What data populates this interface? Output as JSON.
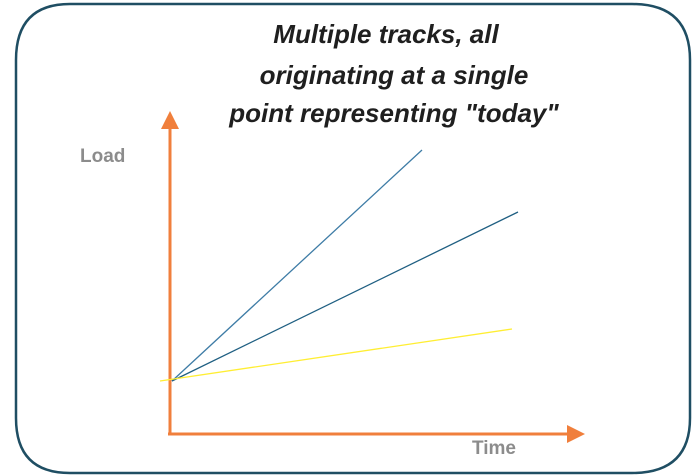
{
  "title_lines": [
    "Multiple tracks, all",
    "originating at a single",
    "point representing \"today\""
  ],
  "axes": {
    "y_label": "Load",
    "x_label": "Time",
    "axis_color": "#f07f3c"
  },
  "frame_color": "#1f4e63",
  "tracks": [
    {
      "color": "#3e7ca6",
      "slope": "steep"
    },
    {
      "color": "#1f5f82",
      "slope": "medium"
    },
    {
      "color": "#ffee33",
      "slope": "shallow"
    }
  ]
}
